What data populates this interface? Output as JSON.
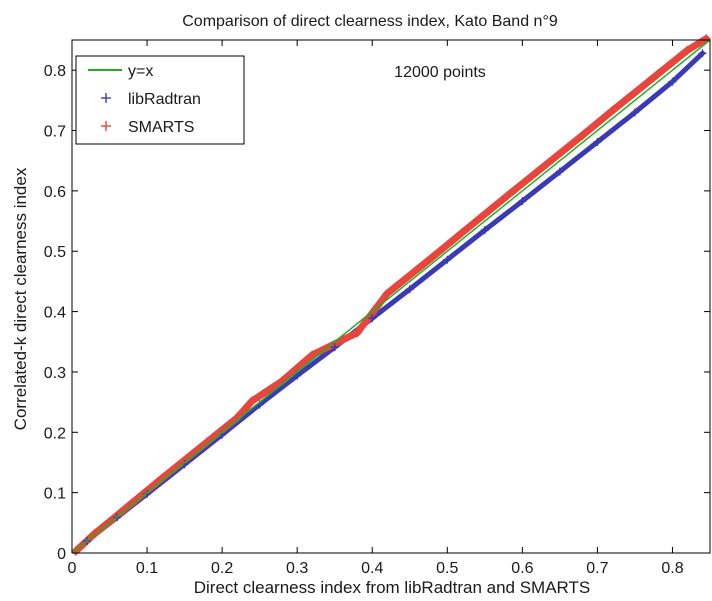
{
  "chart_data": {
    "type": "scatter",
    "title": "Comparison of direct clearness index, Kato Band n°9",
    "xlabel": "Direct clearness index from libRadtran and SMARTS",
    "ylabel": "Correlated-k direct clearness index",
    "xlim": [
      0,
      0.85
    ],
    "ylim": [
      0,
      0.85
    ],
    "xticks": [
      "0",
      "0.1",
      "0.2",
      "0.3",
      "0.4",
      "0.5",
      "0.6",
      "0.7",
      "0.8"
    ],
    "yticks": [
      "0",
      "0.1",
      "0.2",
      "0.3",
      "0.4",
      "0.5",
      "0.6",
      "0.7",
      "0.8"
    ],
    "annotation": "12000 points",
    "legend_position": "top-left",
    "grid": false,
    "series": [
      {
        "name": "y=x",
        "kind": "line",
        "color": "#22b022",
        "x": [
          0,
          0.85
        ],
        "y": [
          0,
          0.85
        ]
      },
      {
        "name": "libRadtran",
        "kind": "points",
        "marker": "+",
        "color": "#3a3ab4",
        "x": [
          0.02,
          0.06,
          0.1,
          0.15,
          0.2,
          0.25,
          0.3,
          0.35,
          0.4,
          0.45,
          0.5,
          0.55,
          0.6,
          0.65,
          0.7,
          0.75,
          0.8,
          0.84
        ],
        "y": [
          0.02,
          0.059,
          0.098,
          0.147,
          0.196,
          0.246,
          0.294,
          0.341,
          0.389,
          0.437,
          0.486,
          0.535,
          0.583,
          0.632,
          0.681,
          0.73,
          0.781,
          0.828
        ]
      },
      {
        "name": "SMARTS",
        "kind": "points",
        "marker": "+",
        "color": "#e8453c",
        "x": [
          0.005,
          0.03,
          0.05,
          0.08,
          0.12,
          0.18,
          0.22,
          0.24,
          0.28,
          0.32,
          0.38,
          0.42,
          0.48,
          0.52,
          0.58,
          0.62,
          0.68,
          0.72,
          0.78,
          0.82,
          0.845
        ],
        "y": [
          0.003,
          0.032,
          0.052,
          0.083,
          0.124,
          0.184,
          0.224,
          0.252,
          0.285,
          0.328,
          0.365,
          0.43,
          0.49,
          0.531,
          0.592,
          0.632,
          0.692,
          0.733,
          0.793,
          0.833,
          0.852
        ]
      }
    ]
  }
}
